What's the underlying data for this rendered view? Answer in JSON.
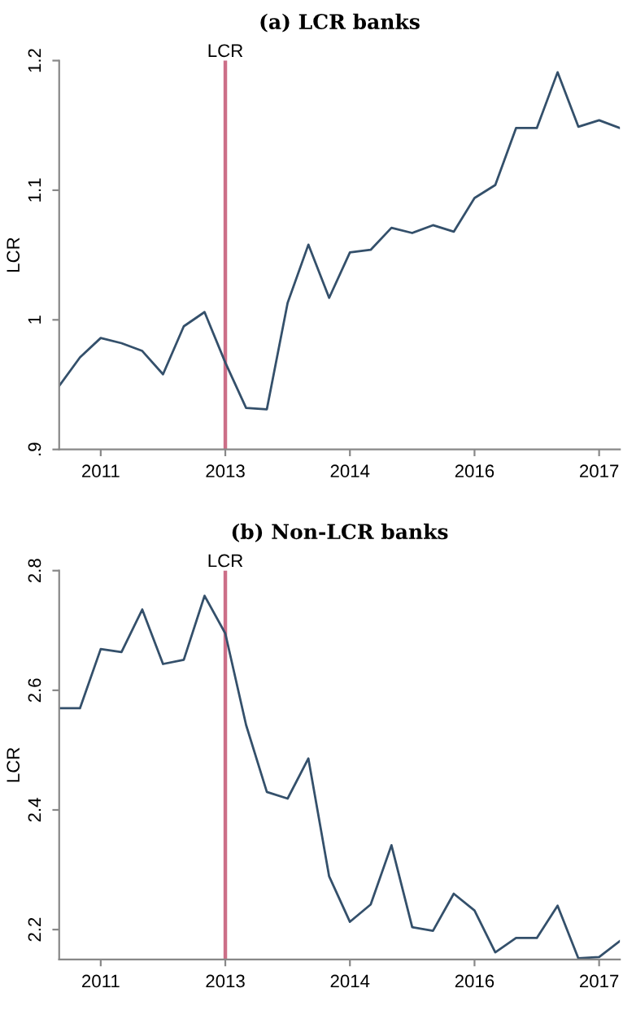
{
  "chart_data": [
    {
      "type": "line",
      "title": "(a) LCR banks",
      "ylabel": "LCR",
      "categories": [
        null,
        null,
        "2011",
        null,
        null,
        null,
        null,
        null,
        "2013",
        null,
        null,
        null,
        null,
        null,
        "2014",
        null,
        null,
        null,
        null,
        null,
        "2016",
        null,
        null,
        null,
        null,
        null,
        "2017",
        null
      ],
      "series": [
        {
          "color": "#34506b",
          "values": [
            0.949,
            0.971,
            0.986,
            0.982,
            0.976,
            0.958,
            0.995,
            1.006,
            0.967,
            0.932,
            0.931,
            1.013,
            1.058,
            1.017,
            1.052,
            1.054,
            1.071,
            1.067,
            1.073,
            1.068,
            1.094,
            1.104,
            1.148,
            1.148,
            1.191,
            1.149,
            1.154,
            1.148
          ]
        }
      ],
      "ylim": [
        0.9,
        1.2
      ],
      "yticks": [
        {
          "value": 0.9,
          "label": ".9"
        },
        1,
        1.1,
        1.2
      ],
      "ref_lines": [
        {
          "axis": "x",
          "value": "2013",
          "label": "LCR",
          "color": "#cc6f88"
        }
      ],
      "grid": false,
      "legend": false,
      "marker": "none",
      "line_style": "solid"
    },
    {
      "type": "line",
      "title": "(b) Non-LCR banks",
      "ylabel": "LCR",
      "categories": [
        null,
        null,
        "2011",
        null,
        null,
        null,
        null,
        null,
        "2013",
        null,
        null,
        null,
        null,
        null,
        "2014",
        null,
        null,
        null,
        null,
        null,
        "2016",
        null,
        null,
        null,
        null,
        null,
        "2017",
        null
      ],
      "series": [
        {
          "color": "#34506b",
          "values": [
            2.57,
            2.57,
            2.669,
            2.664,
            2.735,
            2.644,
            2.651,
            2.758,
            2.695,
            2.542,
            2.43,
            2.419,
            2.486,
            2.289,
            2.213,
            2.242,
            2.341,
            2.204,
            2.198,
            2.26,
            2.232,
            2.162,
            2.186,
            2.186,
            2.24,
            2.152,
            2.154,
            2.181
          ]
        }
      ],
      "ylim": [
        2.15,
        2.8
      ],
      "yticks": [
        2.2,
        2.4,
        2.6,
        2.8
      ],
      "ref_lines": [
        {
          "axis": "x",
          "value": "2013",
          "label": "LCR",
          "color": "#cc6f88"
        }
      ],
      "grid": false,
      "legend": false,
      "marker": "none",
      "line_style": "solid"
    }
  ]
}
